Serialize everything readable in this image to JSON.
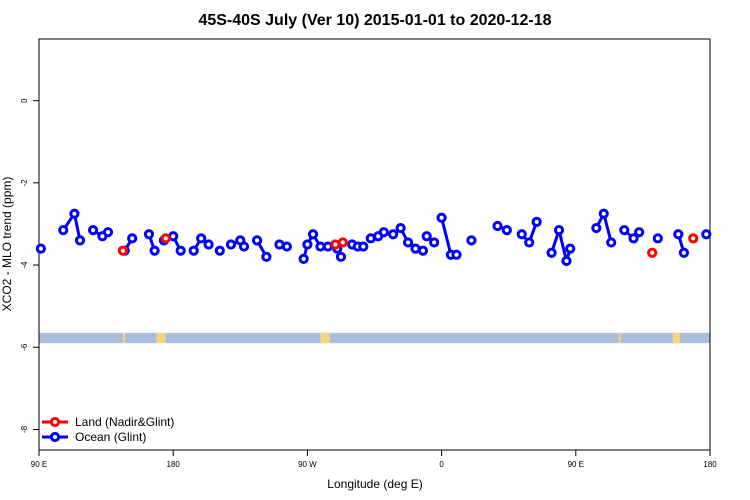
{
  "chart_data": {
    "type": "scatter",
    "title": "45S-40S July (Ver 10)   2015-01-01 to 2020-12-18",
    "xlabel": "Longitude (deg E)",
    "ylabel": "XCO2 - MLO trend (ppm)",
    "xlim": [
      90,
      450
    ],
    "ylim": [
      -8.5,
      1.5
    ],
    "x_ticks": [
      {
        "value": 90,
        "label": "90 E"
      },
      {
        "value": 162,
        "label": "180"
      },
      {
        "value": 234,
        "label": "90 W"
      },
      {
        "value": 306,
        "label": "0"
      },
      {
        "value": 378,
        "label": "90 E"
      },
      {
        "value": 450,
        "label": "180"
      }
    ],
    "y_ticks": [
      {
        "value": 0,
        "label": "0"
      },
      {
        "value": -2,
        "label": "-2"
      },
      {
        "value": -4,
        "label": "-4"
      },
      {
        "value": -6,
        "label": "-6"
      },
      {
        "value": -8,
        "label": "-8"
      }
    ],
    "map_strip": {
      "y_from": -5.65,
      "y_to": -5.9,
      "ocean_color": "#a8bde0",
      "land_color": "#f5d77a",
      "land_segments": [
        [
          135,
          136
        ],
        [
          153,
          158
        ],
        [
          241,
          246
        ],
        [
          401,
          402
        ],
        [
          430,
          434
        ]
      ]
    },
    "legend": {
      "position": "bottom-left",
      "entries": [
        {
          "label": "Land (Nadir&Glint)",
          "color": "#ff0000"
        },
        {
          "label": "Ocean (Glint)",
          "color": "#0000ff"
        }
      ]
    },
    "series": [
      {
        "name": "Ocean (Glint)",
        "color": "#0000ff",
        "segments": [
          [
            [
              91,
              -3.6
            ]
          ],
          [
            [
              103,
              -3.15
            ],
            [
              109,
              -2.75
            ],
            [
              112,
              -3.4
            ]
          ],
          [
            [
              119,
              -3.15
            ],
            [
              124,
              -3.3
            ],
            [
              127,
              -3.2
            ]
          ],
          [
            [
              136,
              -3.65
            ],
            [
              140,
              -3.35
            ]
          ],
          [
            [
              149,
              -3.25
            ],
            [
              152,
              -3.65
            ]
          ],
          [
            [
              157,
              -3.4
            ]
          ],
          [
            [
              162,
              -3.3
            ],
            [
              166,
              -3.65
            ]
          ],
          [
            [
              173,
              -3.65
            ],
            [
              177,
              -3.35
            ],
            [
              181,
              -3.5
            ]
          ],
          [
            [
              187,
              -3.65
            ]
          ],
          [
            [
              193,
              -3.5
            ],
            [
              198,
              -3.4
            ],
            [
              200,
              -3.55
            ]
          ],
          [
            [
              207,
              -3.4
            ],
            [
              212,
              -3.8
            ]
          ],
          [
            [
              219,
              -3.5
            ],
            [
              223,
              -3.55
            ]
          ],
          [
            [
              232,
              -3.85
            ],
            [
              234,
              -3.5
            ],
            [
              237,
              -3.25
            ],
            [
              241,
              -3.55
            ],
            [
              245,
              -3.55
            ]
          ],
          [
            [
              250,
              -3.6
            ],
            [
              252,
              -3.8
            ]
          ],
          [
            [
              258,
              -3.5
            ],
            [
              261,
              -3.55
            ],
            [
              264,
              -3.55
            ]
          ],
          [
            [
              268,
              -3.35
            ],
            [
              272,
              -3.3
            ],
            [
              275,
              -3.2
            ]
          ],
          [
            [
              280,
              -3.25
            ],
            [
              284,
              -3.1
            ],
            [
              288,
              -3.45
            ],
            [
              292,
              -3.6
            ],
            [
              296,
              -3.65
            ]
          ],
          [
            [
              298,
              -3.3
            ],
            [
              302,
              -3.45
            ]
          ],
          [
            [
              306,
              -2.85
            ],
            [
              311,
              -3.75
            ],
            [
              314,
              -3.75
            ]
          ],
          [
            [
              322,
              -3.4
            ]
          ],
          [
            [
              336,
              -3.05
            ],
            [
              341,
              -3.15
            ]
          ],
          [
            [
              349,
              -3.25
            ],
            [
              353,
              -3.45
            ],
            [
              357,
              -2.95
            ]
          ],
          [
            [
              365,
              -3.7
            ],
            [
              369,
              -3.15
            ],
            [
              373,
              -3.9
            ],
            [
              375,
              -3.6
            ]
          ],
          [
            [
              389,
              -3.1
            ],
            [
              393,
              -2.75
            ],
            [
              397,
              -3.45
            ]
          ],
          [
            [
              404,
              -3.15
            ],
            [
              409,
              -3.35
            ],
            [
              412,
              -3.2
            ]
          ],
          [
            [
              422,
              -3.35
            ]
          ],
          [
            [
              433,
              -3.25
            ],
            [
              436,
              -3.7
            ]
          ],
          [
            [
              448,
              -3.25
            ]
          ]
        ]
      },
      {
        "name": "Land (Nadir&Glint)",
        "color": "#ff0000",
        "segments": [
          [
            [
              135,
              -3.65
            ]
          ],
          [
            [
              158,
              -3.35
            ]
          ],
          [
            [
              249,
              -3.5
            ],
            [
              253,
              -3.45
            ]
          ],
          [
            [
              419,
              -3.7
            ]
          ],
          [
            [
              441,
              -3.35
            ]
          ]
        ]
      }
    ]
  }
}
